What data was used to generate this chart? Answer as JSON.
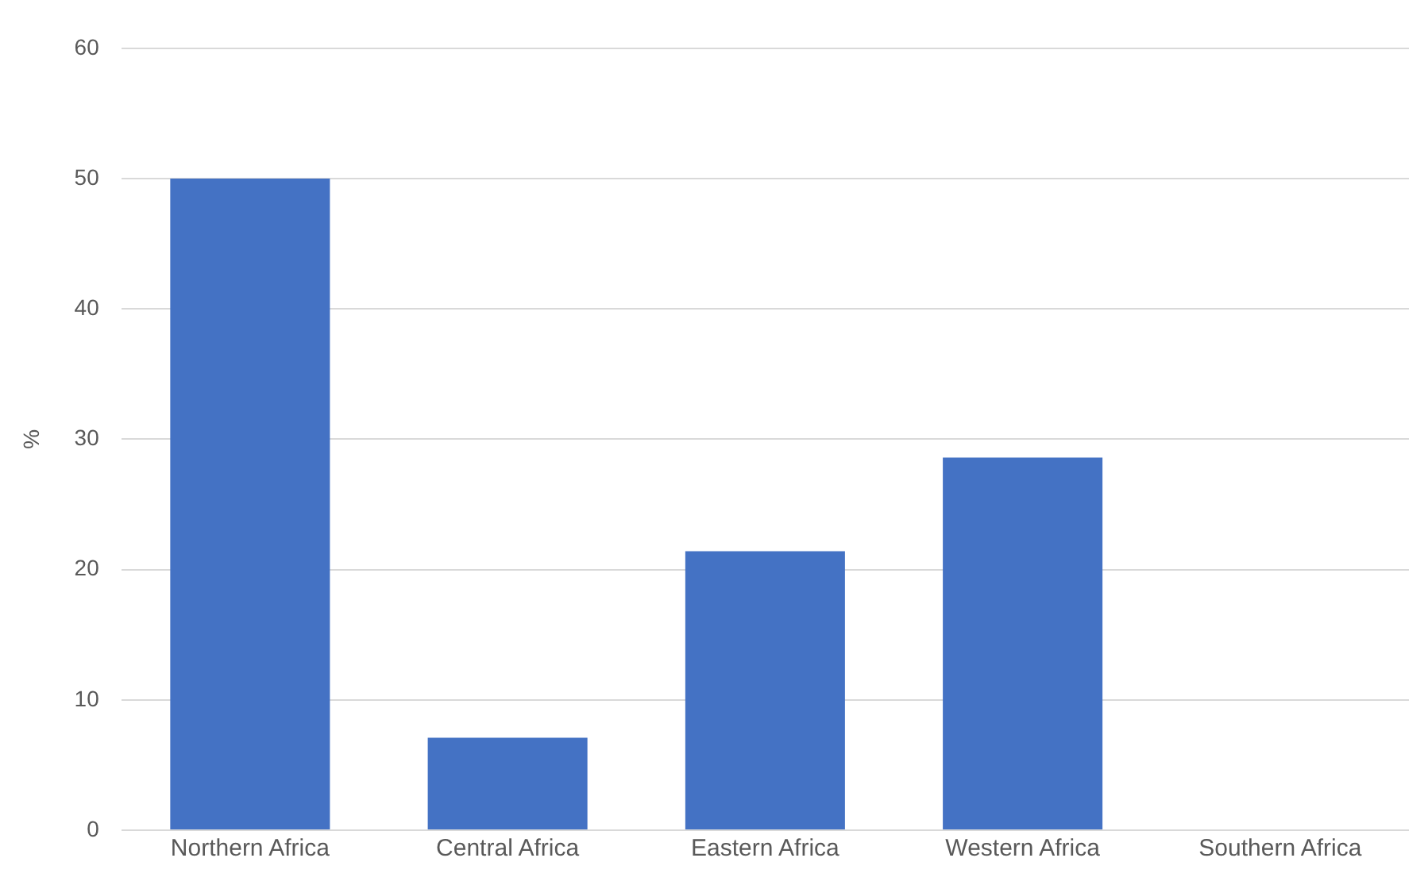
{
  "chart_data": {
    "type": "bar",
    "ylabel": "%",
    "categories": [
      "Northern Africa",
      "Central Africa",
      "Eastern Africa",
      "Western Africa",
      "Southern Africa"
    ],
    "values": [
      50,
      7.1,
      21.4,
      28.6,
      0
    ],
    "color": "#4472c4",
    "ylim": [
      0,
      60
    ],
    "yticks": [
      0,
      10,
      20,
      30,
      40,
      50,
      60
    ],
    "grid": "y",
    "legend": false
  }
}
